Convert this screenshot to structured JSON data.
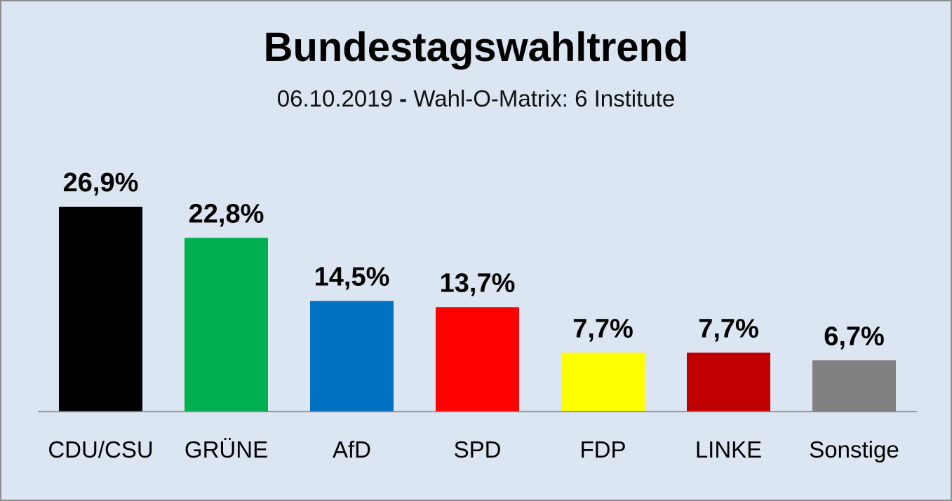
{
  "chart_data": {
    "type": "bar",
    "title": "Bundestagswahltrend",
    "subtitle": {
      "date": "06.10.2019",
      "separator": "-",
      "source": "Wahl-O-Matrix: 6 Institute"
    },
    "xlabel": "",
    "ylabel": "",
    "ylim": [
      0,
      30
    ],
    "grid": false,
    "legend": "none",
    "categories": [
      "CDU/CSU",
      "GRÜNE",
      "AfD",
      "SPD",
      "FDP",
      "LINKE",
      "Sonstige"
    ],
    "values": [
      26.9,
      22.8,
      14.5,
      13.7,
      7.7,
      7.7,
      6.7
    ],
    "value_labels": [
      "26,9%",
      "22,8%",
      "14,5%",
      "13,7%",
      "7,7%",
      "7,7%",
      "6,7%"
    ],
    "colors": [
      "#000000",
      "#00b050",
      "#0070c0",
      "#ff0000",
      "#ffff00",
      "#c00000",
      "#808080"
    ],
    "unit": "%"
  }
}
